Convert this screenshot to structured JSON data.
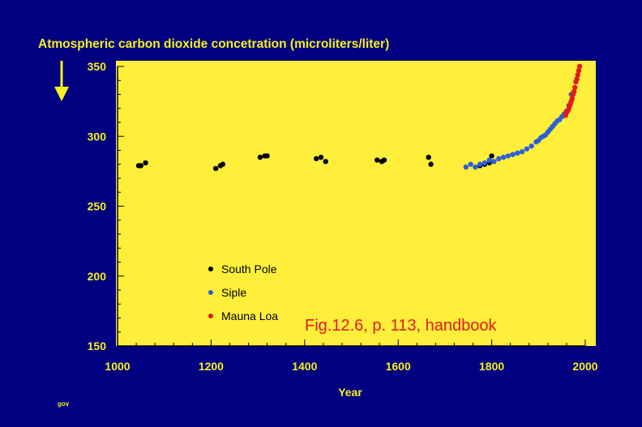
{
  "chart_data": {
    "type": "scatter",
    "title": "",
    "ylabel": "Atmospheric carbon dioxide concetration (microliters/liter)",
    "xlabel": "Year",
    "xlim": [
      1000,
      2000
    ],
    "ylim": [
      150,
      350
    ],
    "xticks": [
      1000,
      1200,
      1400,
      1600,
      1800,
      2000
    ],
    "yticks": [
      150,
      200,
      250,
      300,
      350
    ],
    "legend_position": "lower-left",
    "grid": false,
    "series": [
      {
        "name": "South Pole",
        "color": "#000000",
        "points": [
          [
            1045,
            279
          ],
          [
            1050,
            279
          ],
          [
            1060,
            281
          ],
          [
            1210,
            277
          ],
          [
            1220,
            279
          ],
          [
            1225,
            280
          ],
          [
            1305,
            285
          ],
          [
            1315,
            286
          ],
          [
            1320,
            286
          ],
          [
            1425,
            284
          ],
          [
            1435,
            285
          ],
          [
            1445,
            282
          ],
          [
            1555,
            283
          ],
          [
            1565,
            282
          ],
          [
            1570,
            283
          ],
          [
            1665,
            285
          ],
          [
            1670,
            280
          ],
          [
            1775,
            279
          ],
          [
            1785,
            280
          ],
          [
            1795,
            281
          ],
          [
            1800,
            286
          ]
        ]
      },
      {
        "name": "Siple",
        "color": "#2e5fd6",
        "points": [
          [
            1745,
            278
          ],
          [
            1755,
            280
          ],
          [
            1765,
            278
          ],
          [
            1775,
            280
          ],
          [
            1785,
            281
          ],
          [
            1795,
            283
          ],
          [
            1805,
            282
          ],
          [
            1815,
            284
          ],
          [
            1825,
            285
          ],
          [
            1835,
            286
          ],
          [
            1845,
            287
          ],
          [
            1855,
            288
          ],
          [
            1865,
            289
          ],
          [
            1875,
            291
          ],
          [
            1885,
            293
          ],
          [
            1895,
            296
          ],
          [
            1900,
            297
          ],
          [
            1905,
            299
          ],
          [
            1910,
            300
          ],
          [
            1915,
            301
          ],
          [
            1920,
            303
          ],
          [
            1925,
            305
          ],
          [
            1930,
            307
          ],
          [
            1935,
            309
          ],
          [
            1940,
            311
          ],
          [
            1945,
            312
          ],
          [
            1950,
            314
          ],
          [
            1955,
            316
          ],
          [
            1960,
            318
          ],
          [
            1965,
            322
          ],
          [
            1970,
            330
          ]
        ]
      },
      {
        "name": "Mauna Loa",
        "color": "#e41a1a",
        "points": [
          [
            1958,
            315
          ],
          [
            1960,
            317
          ],
          [
            1962,
            318
          ],
          [
            1964,
            319
          ],
          [
            1966,
            321
          ],
          [
            1968,
            323
          ],
          [
            1970,
            325
          ],
          [
            1972,
            327
          ],
          [
            1974,
            330
          ],
          [
            1976,
            332
          ],
          [
            1978,
            335
          ],
          [
            1980,
            339
          ],
          [
            1982,
            341
          ],
          [
            1984,
            344
          ],
          [
            1986,
            347
          ],
          [
            1988,
            350
          ]
        ]
      }
    ],
    "annotation": "Fig.12.6, p. 113, handbook"
  },
  "footer": {
    "credit": "gov"
  },
  "colors": {
    "background": "#000080",
    "plot_area": "#ffef3b",
    "text": "#f7f01c"
  }
}
